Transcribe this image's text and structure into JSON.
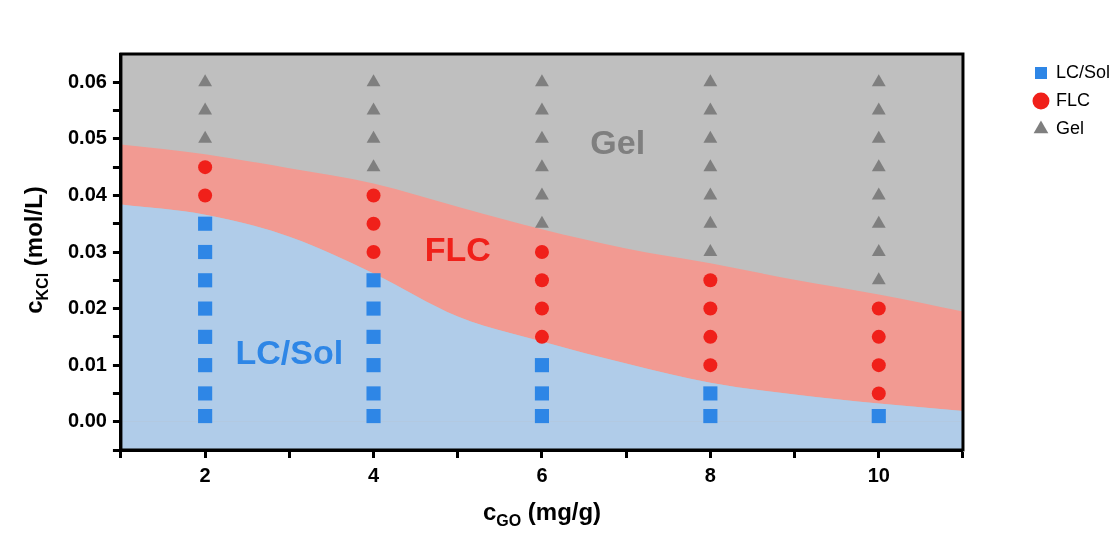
{
  "chart_data": {
    "type": "scatter",
    "xlabel": "c$_{GO}$ (mg/g)",
    "ylabel": "c$_{KCl}$ (mol/L)",
    "xlim": [
      1,
      11
    ],
    "ylim": [
      -0.005,
      0.065
    ],
    "xticks": [
      {
        "value": 1,
        "label": null
      },
      2,
      {
        "value": 3,
        "label": null
      },
      4,
      {
        "value": 5,
        "label": null
      },
      6,
      {
        "value": 7,
        "label": null
      },
      8,
      {
        "value": 9,
        "label": null
      },
      10,
      {
        "value": 11,
        "label": null
      }
    ],
    "yticks": [
      {
        "value": -0.005,
        "label": null
      },
      "0.00",
      {
        "value": 0.005,
        "label": null
      },
      0.01,
      {
        "value": 0.015,
        "label": null
      },
      0.02,
      {
        "value": 0.025,
        "label": null
      },
      0.03,
      {
        "value": 0.035,
        "label": null
      },
      0.04,
      {
        "value": 0.045,
        "label": null
      },
      0.05,
      {
        "value": 0.055,
        "label": null
      },
      0.06
    ],
    "legend": "top right",
    "bands": [
      {
        "axis": "y",
        "from": -0.005,
        "to": 0.065,
        "color": "#bfbfbf"
      },
      {
        "axis": "y",
        "from": -0.005,
        "to": 0,
        "color": "#b0cce9"
      }
    ],
    "series": [
      {
        "type": "area",
        "color": "#b0cce9",
        "x": [
          1,
          2,
          3,
          4,
          5,
          6,
          7,
          8,
          9,
          10,
          11
        ],
        "values": [
          0.0384,
          0.0366,
          0.0327,
          0.0262,
          0.0186,
          0.0142,
          0.0103,
          0.0069,
          0.0048,
          0.0032,
          0.0019
        ]
      },
      {
        "type": "area",
        "color": "#f29a92",
        "x": [
          1,
          2,
          3,
          4,
          5,
          6,
          7,
          8,
          9,
          10,
          11
        ],
        "values": [
          0.049,
          0.0473,
          0.0448,
          0.0421,
          0.038,
          0.034,
          0.0306,
          0.028,
          0.0251,
          0.0225,
          0.0195
        ]
      },
      {
        "name": "LC/Sol",
        "marker": "square",
        "color": "#2e86e6",
        "x": [
          2,
          2,
          2,
          2,
          2,
          2,
          2,
          2,
          4,
          4,
          4,
          4,
          4,
          4,
          6,
          6,
          6,
          8,
          8,
          10
        ],
        "values": [
          0.001,
          0.005,
          0.01,
          0.015,
          0.02,
          0.025,
          0.03,
          0.035,
          0.001,
          0.005,
          0.01,
          0.015,
          0.02,
          0.025,
          0.001,
          0.005,
          0.01,
          0.001,
          0.005,
          0.001
        ]
      },
      {
        "name": "FLC",
        "marker": "circle",
        "color": "#f0201a",
        "x": [
          2,
          2,
          4,
          4,
          4,
          6,
          6,
          6,
          6,
          8,
          8,
          8,
          8,
          10,
          10,
          10,
          10
        ],
        "values": [
          0.04,
          0.045,
          0.03,
          0.035,
          0.04,
          0.015,
          0.02,
          0.025,
          0.03,
          0.01,
          0.015,
          0.02,
          0.025,
          0.005,
          0.01,
          0.015,
          0.02
        ]
      },
      {
        "name": "Gel",
        "marker": "triangle",
        "color": "#7f7f7f",
        "x": [
          2,
          2,
          2,
          4,
          4,
          4,
          4,
          6,
          6,
          6,
          6,
          6,
          6,
          8,
          8,
          8,
          8,
          8,
          8,
          8,
          10,
          10,
          10,
          10,
          10,
          10,
          10,
          10
        ],
        "values": [
          0.05,
          0.055,
          0.06,
          0.045,
          0.05,
          0.055,
          0.06,
          0.035,
          0.04,
          0.045,
          0.05,
          0.055,
          0.06,
          0.03,
          0.035,
          0.04,
          0.045,
          0.05,
          0.055,
          0.06,
          0.025,
          0.03,
          0.035,
          0.04,
          0.045,
          0.05,
          0.055,
          0.06
        ]
      }
    ],
    "annotations": [
      "LC/Sol",
      "FLC",
      "Gel"
    ]
  }
}
